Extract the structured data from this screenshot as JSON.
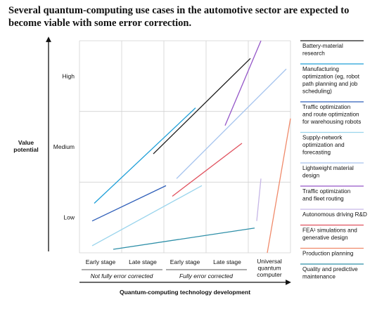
{
  "title": "Several quantum-computing use cases in the automotive sector are expected to become viable with some error correction.",
  "chart_data": {
    "type": "line",
    "ylabel": "Value potential",
    "xlabel": "Quantum-computing technology development",
    "y_ticks": [
      "Low",
      "Medium",
      "High"
    ],
    "y_range": [
      0.5,
      3.5
    ],
    "x_range": [
      0,
      5
    ],
    "x_ticks": [
      "Early stage",
      "Late stage",
      "Early stage",
      "Late stage",
      "Universal quantum computer"
    ],
    "x_groups": [
      "Not fully error corrected",
      "Fully error corrected"
    ],
    "grid": true,
    "legend_position": "right",
    "series": [
      {
        "name": "Battery-material research",
        "color": "#1a1a1a",
        "x": [
          1.75,
          4.05
        ],
        "y": [
          1.9,
          3.25
        ]
      },
      {
        "name": "Manufacturing optimization (eg, robot path planning and job scheduling)",
        "color": "#1e9fd8",
        "x": [
          0.35,
          2.75
        ],
        "y": [
          1.2,
          2.55
        ]
      },
      {
        "name": "Traffic optimization and route optimization for warehousing robots",
        "color": "#2f5fb9",
        "x": [
          0.3,
          2.05
        ],
        "y": [
          0.95,
          1.45
        ]
      },
      {
        "name": "Supply-network optimization and forecasting",
        "color": "#99d4ec",
        "x": [
          0.3,
          2.9
        ],
        "y": [
          0.6,
          1.45
        ]
      },
      {
        "name": "Lightweight material design",
        "color": "#a6c4ee",
        "x": [
          2.3,
          4.9
        ],
        "y": [
          1.55,
          3.1
        ]
      },
      {
        "name": "Traffic optimization and fleet routing",
        "color": "#9456c8",
        "x": [
          3.45,
          4.3
        ],
        "y": [
          2.3,
          3.5
        ]
      },
      {
        "name": "Autonomous driving R&D",
        "color": "#c6b6e6",
        "x": [
          4.2,
          4.3
        ],
        "y": [
          0.95,
          1.55
        ]
      },
      {
        "name": "FEA¹ simulations and generative design",
        "color": "#e0515e",
        "x": [
          2.2,
          3.85
        ],
        "y": [
          1.3,
          2.05
        ]
      },
      {
        "name": "Production planning",
        "color": "#f08a6a",
        "x": [
          4.45,
          5.0
        ],
        "y": [
          0.5,
          2.4
        ]
      },
      {
        "name": "Quality and predictive maintenance",
        "color": "#2e8fa8",
        "x": [
          0.8,
          4.15
        ],
        "y": [
          0.55,
          0.85
        ]
      }
    ]
  }
}
